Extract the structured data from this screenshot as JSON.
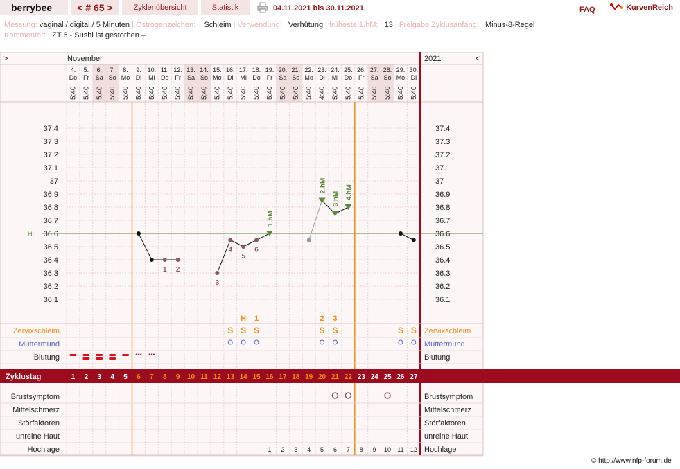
{
  "header": {
    "brand": "berrybee",
    "cycle_nav": "< # 65 >",
    "tab_overview": "Zyklenübersicht",
    "tab_stats": "Statistik",
    "date_range": "04.11.2021 bis 30.11.2021",
    "faq": "FAQ",
    "kurvenreich": "KurvenReich"
  },
  "meta": {
    "messung_label": "Messung:",
    "messung_value": "vaginal / digital / 5 Minuten",
    "oestrogen_label": "Östrogenzeichen:",
    "oestrogen_value": "Schleim",
    "verwendung_label": "Verwendung:",
    "verwendung_value": "Verhütung",
    "hm_label": "früheste 1.hM:",
    "hm_value": "13",
    "freigabe_label": "Freigabe Zyklusanfang:",
    "freigabe_value": "Minus-8-Regel",
    "kommentar_label": "Kommentar:",
    "kommentar_value": "ZT 6 - Sushi ist gestorben –"
  },
  "chart_data": {
    "type": "line",
    "month": "November",
    "year": "2021",
    "nav_left": ">",
    "nav_right": "<",
    "hl_label": "HL",
    "hl_value": 36.6,
    "ylim": [
      36.1,
      37.4
    ],
    "yticks": [
      "37.4",
      "37.3",
      "37.2",
      "37.1",
      "37",
      "36.9",
      "36.8",
      "36.7",
      "36.6",
      "36.5",
      "36.4",
      "36.3",
      "36.2",
      "36.1"
    ],
    "dates": [
      "4.",
      "5.",
      "6.",
      "7.",
      "8.",
      "9.",
      "10.",
      "11.",
      "12.",
      "13.",
      "14.",
      "15.",
      "16.",
      "17.",
      "18.",
      "19.",
      "20.",
      "21.",
      "22.",
      "23.",
      "24.",
      "25.",
      "26.",
      "27.",
      "28.",
      "29.",
      "30."
    ],
    "weekdays": [
      "Do",
      "Fr",
      "Sa",
      "So",
      "Mo",
      "Di",
      "Mi",
      "Do",
      "Fr",
      "Sa",
      "So",
      "Mo",
      "Di",
      "Mi",
      "Do",
      "Fr",
      "Sa",
      "So",
      "Mo",
      "Di",
      "Mi",
      "Do",
      "Fr",
      "Sa",
      "So",
      "Mo",
      "Di"
    ],
    "times": [
      "5:40",
      "5:40",
      "5:40",
      "5:40",
      "5:40",
      "5:40",
      "5:40",
      "5:40",
      "5:40",
      "5:40",
      "5:40",
      "5:40",
      "5:40",
      "5:40",
      "5:40",
      "5:40",
      "5:40",
      "5:40",
      "5:40",
      "4:40",
      "5:40",
      "5:40",
      "5:40",
      "5:40",
      "5:40",
      "5:40",
      "5:40"
    ],
    "temps": [
      null,
      null,
      null,
      null,
      null,
      36.6,
      36.4,
      36.4,
      36.4,
      null,
      null,
      36.3,
      36.55,
      36.5,
      36.55,
      36.6,
      null,
      null,
      36.55,
      36.85,
      36.75,
      36.8,
      null,
      null,
      null,
      36.6,
      36.55
    ],
    "temp_labels": {
      "7": "1",
      "8": "2",
      "11": "3",
      "12": "4",
      "13": "5",
      "14": "6"
    },
    "hm_labels": {
      "15": "1.hM",
      "19": "2.hM",
      "20": "3.hM",
      "21": "4.hM"
    },
    "cycle_days": [
      "1",
      "2",
      "3",
      "4",
      "5",
      "6",
      "7",
      "8",
      "9",
      "10",
      "11",
      "12",
      "13",
      "14",
      "15",
      "16",
      "17",
      "18",
      "19",
      "20",
      "21",
      "22",
      "23",
      "24",
      "25",
      "26",
      "27"
    ],
    "hochlage": [
      "",
      "",
      "",
      "",
      "",
      "",
      "",
      "",
      "",
      "",
      "",
      "",
      "",
      "",
      "",
      "1",
      "2",
      "3",
      "4",
      "5",
      "6",
      "7",
      "8",
      "9",
      "10",
      "11",
      "12"
    ],
    "row_labels": {
      "zervix": "Zervixschleim",
      "muttermund": "Muttermund",
      "blutung": "Blutung",
      "zyklustag": "Zyklustag",
      "brust": "Brustsymptom",
      "mittel": "Mittelschmerz",
      "stoer": "Störfaktoren",
      "haut": "unreine Haut",
      "hochlage": "Hochlage"
    },
    "zervix_marks": {
      "12": "S",
      "13": "S",
      "14": "S",
      "19": "S",
      "20": "S",
      "25": "S",
      "26": "S"
    },
    "zervix_count": {
      "13": "H",
      "14": "1",
      "19": "2",
      "20": "3"
    },
    "colors": {
      "accent": "#9b0d1e",
      "orange": "#ef8c1a",
      "green": "#5b8a3a",
      "line": "#111111",
      "muttermund": "#5566cc"
    }
  },
  "footer": {
    "copyright": "© http://www.nfp-forum.de"
  }
}
